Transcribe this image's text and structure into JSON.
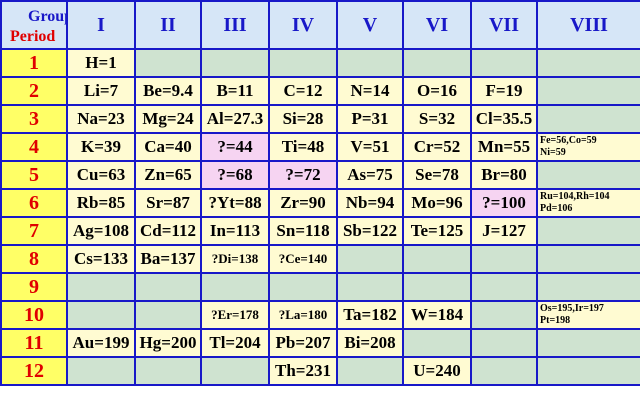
{
  "header": {
    "group_label": "Group",
    "period_label": "Period",
    "groups": [
      "I",
      "II",
      "III",
      "IV",
      "V",
      "VI",
      "VII",
      "VIII"
    ]
  },
  "rows": [
    {
      "period": "1",
      "cells": [
        "H=1",
        null,
        null,
        null,
        null,
        null,
        null,
        null
      ]
    },
    {
      "period": "2",
      "cells": [
        "Li=7",
        "Be=9.4",
        "B=11",
        "C=12",
        "N=14",
        "O=16",
        "F=19",
        null
      ]
    },
    {
      "period": "3",
      "cells": [
        "Na=23",
        "Mg=24",
        "Al=27.3",
        "Si=28",
        "P=31",
        "S=32",
        "Cl=35.5",
        null
      ]
    },
    {
      "period": "4",
      "cells": [
        "K=39",
        "Ca=40",
        "?=44",
        "Ti=48",
        "V=51",
        "Cr=52",
        "Mn=55",
        [
          "Fe=56,Co=59",
          "Ni=59"
        ]
      ]
    },
    {
      "period": "5",
      "cells": [
        "Cu=63",
        "Zn=65",
        "?=68",
        "?=72",
        "As=75",
        "Se=78",
        "Br=80",
        null
      ]
    },
    {
      "period": "6",
      "cells": [
        "Rb=85",
        "Sr=87",
        "?Yt=88",
        "Zr=90",
        "Nb=94",
        "Mo=96",
        "?=100",
        [
          "Ru=104,Rh=104",
          "Pd=106"
        ]
      ]
    },
    {
      "period": "7",
      "cells": [
        "Ag=108",
        "Cd=112",
        "In=113",
        "Sn=118",
        "Sb=122",
        "Te=125",
        "J=127",
        null
      ]
    },
    {
      "period": "8",
      "cells": [
        "Cs=133",
        "Ba=137",
        "?Di=138",
        "?Ce=140",
        null,
        null,
        null,
        null
      ]
    },
    {
      "period": "9",
      "cells": [
        null,
        null,
        null,
        null,
        null,
        null,
        null,
        null
      ]
    },
    {
      "period": "10",
      "cells": [
        null,
        null,
        "?Er=178",
        "?La=180",
        "Ta=182",
        "W=184",
        null,
        [
          "Os=195,Ir=197",
          "Pt=198"
        ]
      ]
    },
    {
      "period": "11",
      "cells": [
        "Au=199",
        "Hg=200",
        "Tl=204",
        "Pb=207",
        "Bi=208",
        null,
        null,
        null
      ]
    },
    {
      "period": "12",
      "cells": [
        null,
        null,
        null,
        "Th=231",
        null,
        "U=240",
        null,
        null
      ]
    }
  ]
}
